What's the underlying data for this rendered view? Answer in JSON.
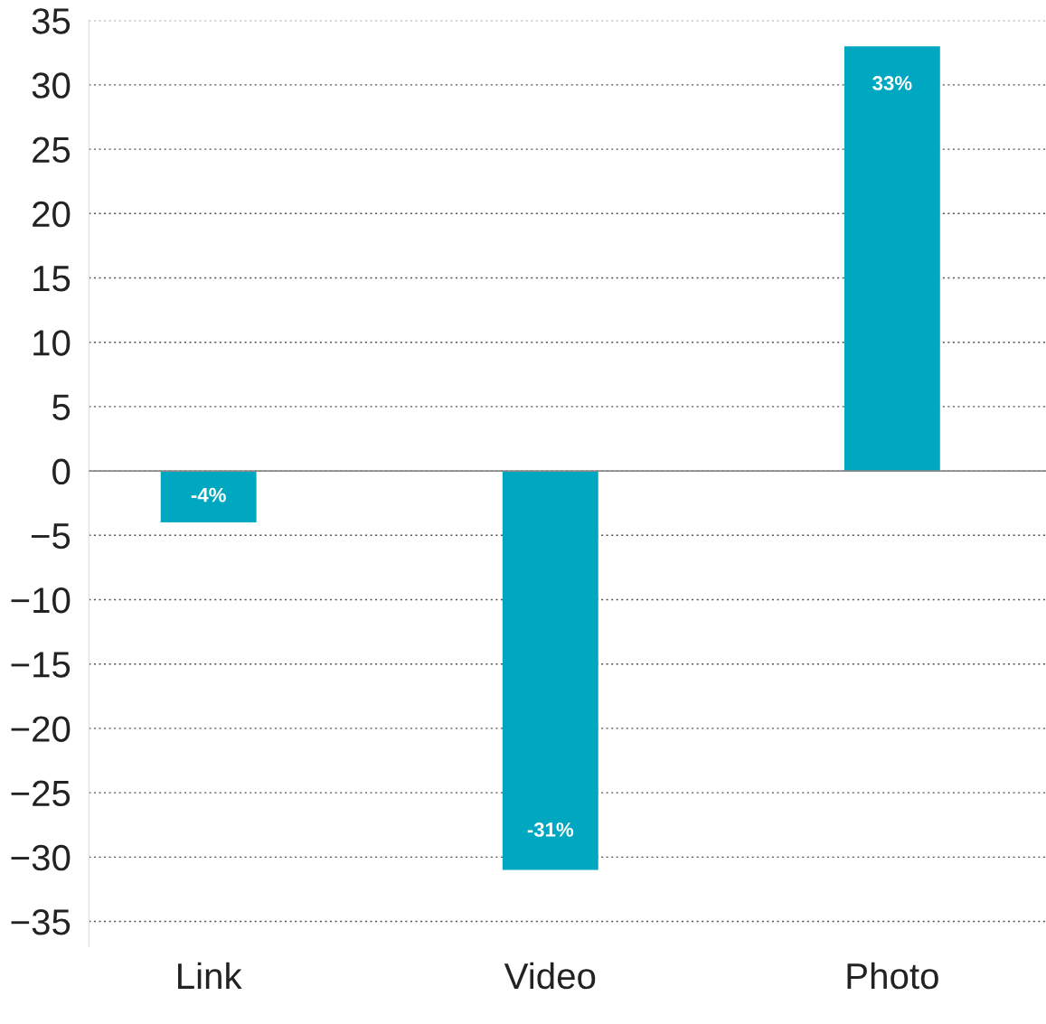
{
  "chart_data": {
    "type": "bar",
    "categories": [
      "Link",
      "Video",
      "Photo"
    ],
    "values": [
      -4,
      -31,
      33
    ],
    "value_labels": [
      "-4%",
      "-31%",
      "33%"
    ],
    "color": "#00a7c0",
    "ylim": [
      -37,
      35
    ],
    "yticks": [
      -35,
      -30,
      -25,
      -20,
      -15,
      -10,
      -5,
      0,
      5,
      10,
      15,
      20,
      25,
      30,
      35
    ],
    "grid": "y",
    "legend": false
  }
}
